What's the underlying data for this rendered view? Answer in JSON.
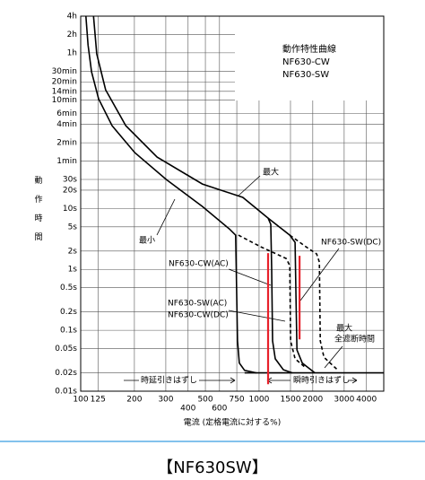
{
  "chart_data": {
    "type": "line",
    "x_scale": "log",
    "y_scale": "log",
    "grid": true,
    "xlim": [
      100,
      5000
    ],
    "ylim": [
      0.01,
      14400
    ],
    "xticks": [
      100,
      125,
      200,
      300,
      400,
      500,
      600,
      750,
      1000,
      1500,
      2000,
      3000,
      4000
    ],
    "yticks": [
      {
        "value": 0.01,
        "label": "0.01s"
      },
      {
        "value": 0.02,
        "label": "0.02s"
      },
      {
        "value": 0.05,
        "label": "0.05s"
      },
      {
        "value": 0.1,
        "label": "0.1s"
      },
      {
        "value": 0.2,
        "label": "0.2s"
      },
      {
        "value": 0.5,
        "label": "0.5s"
      },
      {
        "value": 1,
        "label": "1s"
      },
      {
        "value": 2,
        "label": "2s"
      },
      {
        "value": 5,
        "label": "5s"
      },
      {
        "value": 10,
        "label": "10s"
      },
      {
        "value": 20,
        "label": "20s"
      },
      {
        "value": 30,
        "label": "30s"
      },
      {
        "value": 60,
        "label": "1min"
      },
      {
        "value": 120,
        "label": "2min"
      },
      {
        "value": 240,
        "label": "4min"
      },
      {
        "value": 360,
        "label": "6min"
      },
      {
        "value": 600,
        "label": "10min"
      },
      {
        "value": 840,
        "label": "14min"
      },
      {
        "value": 1200,
        "label": "20min"
      },
      {
        "value": 1800,
        "label": "30min"
      },
      {
        "value": 3600,
        "label": "1h"
      },
      {
        "value": 7200,
        "label": "2h"
      },
      {
        "value": 14400,
        "label": "4h"
      }
    ],
    "xlabel": "電流 (定格電流に対する%)",
    "ylabel": "動作時間",
    "legend_lines": [
      "動作特性曲線",
      "NF630-CW",
      "NF630-SW"
    ],
    "annotations": [
      "最大",
      "最小",
      "NF630-SW(DC)",
      "NF630-CW(AC)",
      "NF630-SW(AC)",
      "NF630-CW(DC)",
      "最大",
      "全遮断時間",
      "時延引きはずし",
      "瞬時引きはずし"
    ],
    "series": [
      {
        "color": "#000000",
        "line_style": "solid",
        "x": [
          107,
          110,
          115,
          126,
          150,
          201,
          302,
          481,
          681,
          739,
          745,
          757,
          775,
          830,
          966
        ],
        "values": [
          14400,
          4840,
          1750,
          632,
          229,
          82.7,
          29.9,
          10.8,
          4.63,
          3.65,
          1.0,
          0.067,
          0.029,
          0.022,
          0.02
        ]
      },
      {
        "color": "#000000",
        "line_style": "solid",
        "x": [
          118,
          123,
          138,
          179,
          268,
          481,
          811,
          1123,
          1163,
          1177,
          1191,
          1233,
          1368,
          1537
        ],
        "values": [
          14400,
          3450,
          888,
          229,
          69.8,
          25.2,
          15.2,
          6.95,
          5.49,
          1.0,
          0.067,
          0.034,
          0.0225,
          0.02
        ]
      },
      {
        "color": "#000000",
        "line_style": "solid",
        "x": [
          1123,
          1486,
          1592,
          1611,
          1630,
          1746,
          2056
        ],
        "values": [
          6.95,
          3.65,
          2.78,
          0.364,
          0.0475,
          0.029,
          0.02
        ]
      },
      {
        "color": "#000000",
        "line_style": "dashed",
        "x": [
          766,
          1023,
          1419,
          1486,
          1503,
          1592,
          1832
        ],
        "values": [
          3.65,
          2.35,
          1.51,
          1.15,
          0.067,
          0.034,
          0.024
        ]
      },
      {
        "color": "#000000",
        "line_style": "dashed",
        "x": [
          1486,
          1832,
          2104,
          2178,
          2203,
          2311,
          2749
        ],
        "values": [
          3.65,
          2.35,
          1.79,
          1.32,
          0.067,
          0.036,
          0.0225
        ]
      },
      {
        "color": "#000000",
        "line_style": "solid",
        "x": [
          830,
          5000
        ],
        "values": [
          0.02,
          0.02
        ]
      },
      {
        "color": "#e8202a",
        "line_style": "solid",
        "x": [
          1123,
          1123
        ],
        "values": [
          1.85,
          0.013
        ]
      },
      {
        "color": "#e8202a",
        "line_style": "solid",
        "x": [
          1687,
          1687
        ],
        "values": [
          1.67,
          0.071
        ]
      }
    ]
  },
  "caption": "【NF630SW】"
}
